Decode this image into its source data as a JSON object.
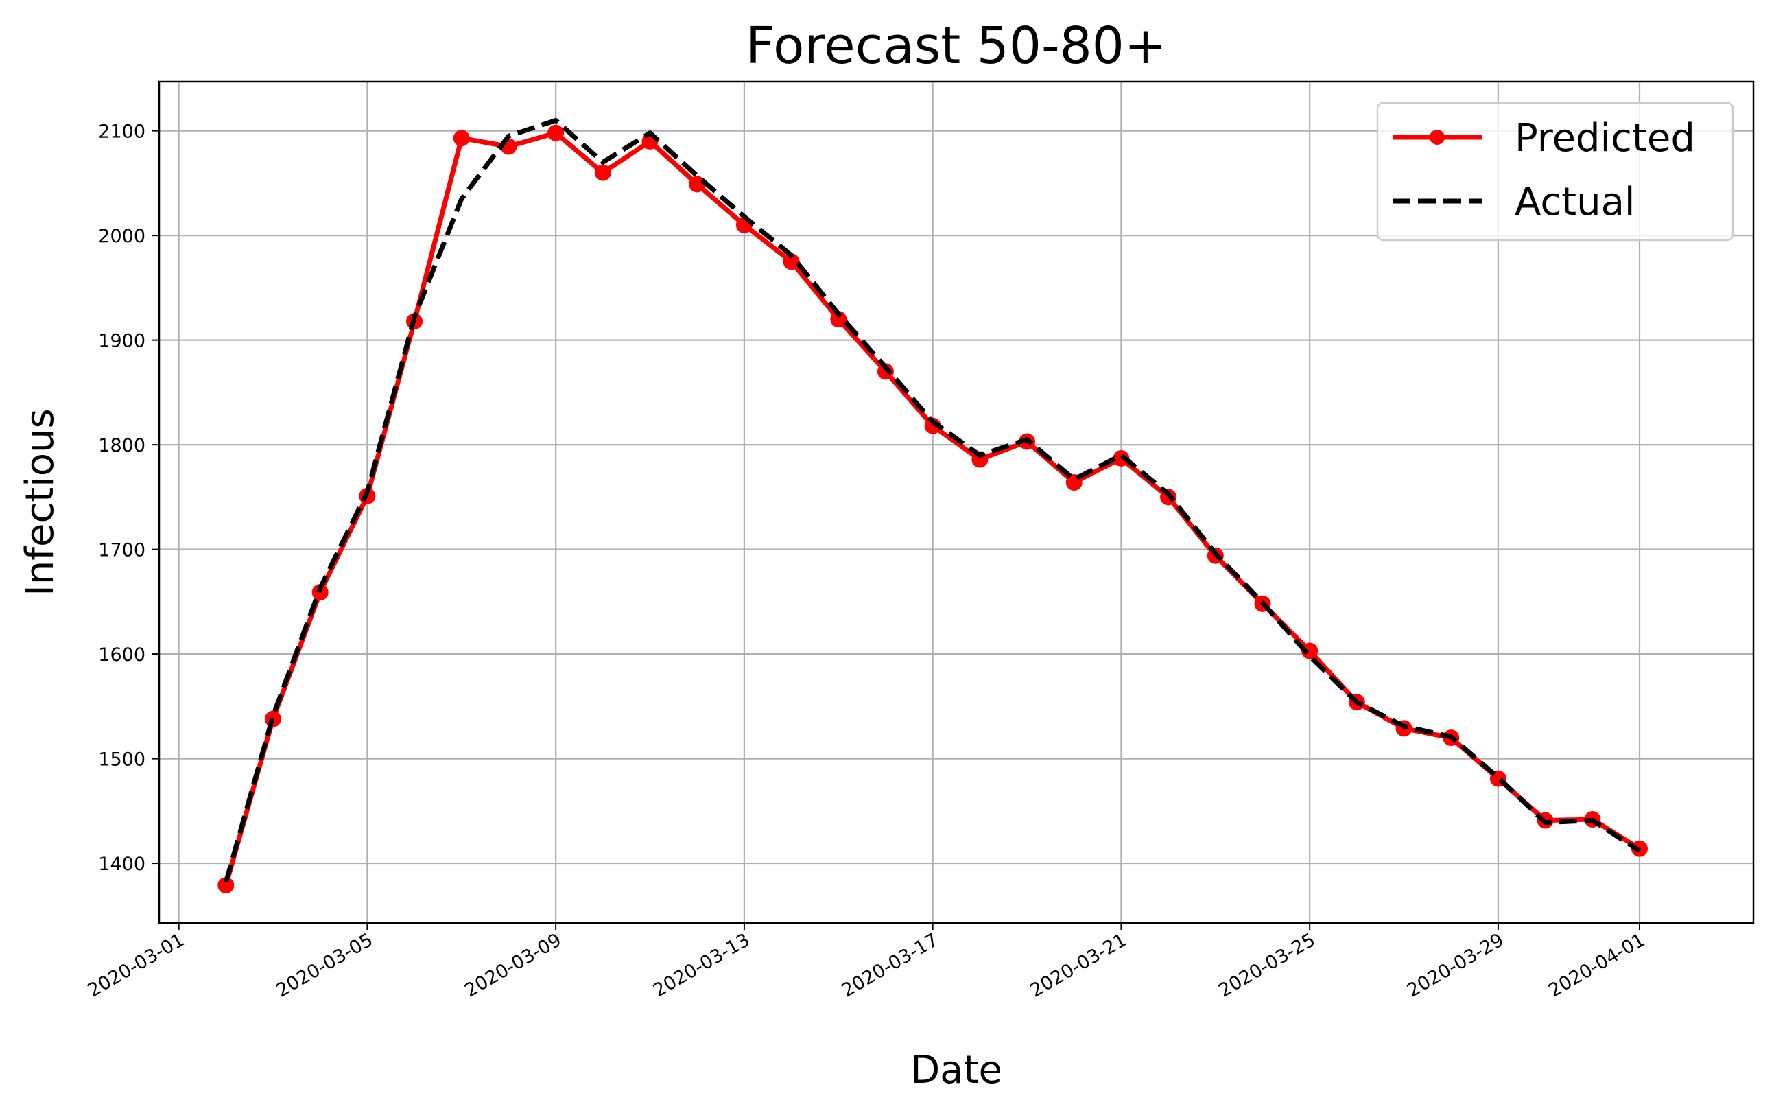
{
  "chart_data": {
    "type": "line",
    "title": "Forecast 50-80+",
    "xlabel": "Date",
    "ylabel": "Infectious",
    "x_axis_type": "date",
    "xlim": [
      "2020-02-29T14:00",
      "2020-04-03T10:00"
    ],
    "ylim": [
      1343,
      2147
    ],
    "x_ticks": [
      "2020-03-01",
      "2020-03-05",
      "2020-03-09",
      "2020-03-13",
      "2020-03-17",
      "2020-03-21",
      "2020-03-25",
      "2020-03-29",
      "2020-04-01"
    ],
    "y_ticks": [
      1400,
      1500,
      1600,
      1700,
      1800,
      1900,
      2000,
      2100
    ],
    "grid": true,
    "legend_position": "top-right",
    "x": [
      "2020-03-02",
      "2020-03-03",
      "2020-03-04",
      "2020-03-05",
      "2020-03-06",
      "2020-03-07",
      "2020-03-08",
      "2020-03-09",
      "2020-03-10",
      "2020-03-11",
      "2020-03-12",
      "2020-03-13",
      "2020-03-14",
      "2020-03-15",
      "2020-03-16",
      "2020-03-17",
      "2020-03-18",
      "2020-03-19",
      "2020-03-20",
      "2020-03-21",
      "2020-03-22",
      "2020-03-23",
      "2020-03-24",
      "2020-03-25",
      "2020-03-26",
      "2020-03-27",
      "2020-03-28",
      "2020-03-29",
      "2020-03-30",
      "2020-03-31",
      "2020-04-01"
    ],
    "series": [
      {
        "name": "Predicted",
        "color": "#ff0000",
        "style": "solid-with-circle-markers",
        "values": [
          1379,
          1538,
          1659,
          1751,
          1918,
          2093,
          2085,
          2098,
          2060,
          2090,
          2049,
          2010,
          1975,
          1920,
          1870,
          1818,
          1786,
          1803,
          1764,
          1787,
          1750,
          1694,
          1648,
          1603,
          1554,
          1529,
          1520,
          1481,
          1441,
          1442,
          1414
        ]
      },
      {
        "name": "Actual",
        "color": "#000000",
        "style": "dashed",
        "values": [
          1382,
          1541,
          1663,
          1755,
          1922,
          2035,
          2095,
          2110,
          2070,
          2098,
          2057,
          2018,
          1981,
          1925,
          1874,
          1822,
          1790,
          1805,
          1767,
          1790,
          1753,
          1696,
          1649,
          1598,
          1554,
          1531,
          1521,
          1482,
          1439,
          1441,
          1412
        ]
      }
    ]
  }
}
